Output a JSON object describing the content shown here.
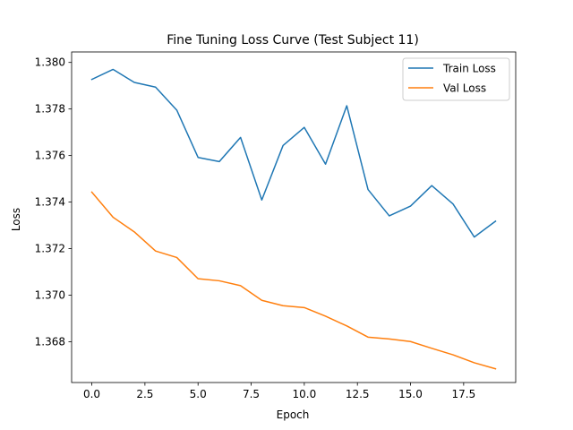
{
  "chart_data": {
    "type": "line",
    "title": "Fine Tuning Loss Curve (Test Subject 11)",
    "xlabel": "Epoch",
    "ylabel": "Loss",
    "xlim": [
      -0.95,
      19.95
    ],
    "ylim": [
      1.36625,
      1.38045
    ],
    "x_ticks": [
      0.0,
      2.5,
      5.0,
      7.5,
      10.0,
      12.5,
      15.0,
      17.5
    ],
    "x_tick_labels": [
      "0.0",
      "2.5",
      "5.0",
      "7.5",
      "10.0",
      "12.5",
      "15.0",
      "17.5"
    ],
    "y_ticks": [
      1.368,
      1.37,
      1.372,
      1.374,
      1.376,
      1.378,
      1.38
    ],
    "y_tick_labels": [
      "1.368",
      "1.370",
      "1.372",
      "1.374",
      "1.376",
      "1.378",
      "1.380"
    ],
    "x": [
      0,
      1,
      2,
      3,
      4,
      5,
      6,
      7,
      8,
      9,
      10,
      11,
      12,
      13,
      14,
      15,
      16,
      17,
      18,
      19
    ],
    "series": [
      {
        "name": "Train Loss",
        "color": "#1f77b4",
        "values": [
          1.37927,
          1.3797,
          1.37914,
          1.37894,
          1.37795,
          1.37592,
          1.37574,
          1.37678,
          1.37409,
          1.37643,
          1.37721,
          1.37563,
          1.37814,
          1.37454,
          1.37341,
          1.37383,
          1.37471,
          1.37392,
          1.3725,
          1.37318
        ]
      },
      {
        "name": "Val Loss",
        "color": "#ff7f0e",
        "values": [
          1.37443,
          1.37335,
          1.37272,
          1.3719,
          1.37162,
          1.37071,
          1.37062,
          1.37041,
          1.36978,
          1.36955,
          1.36947,
          1.3691,
          1.36868,
          1.3682,
          1.36812,
          1.36801,
          1.36772,
          1.36744,
          1.3671,
          1.36684
        ]
      }
    ],
    "grid": false,
    "legend_position": "top-right"
  }
}
